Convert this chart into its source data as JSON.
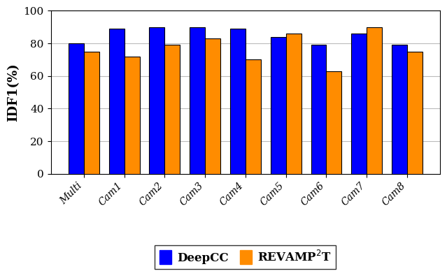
{
  "categories": [
    "Multi",
    "Cam1",
    "Cam2",
    "Cam3",
    "Cam4",
    "Cam5",
    "Cam6",
    "Cam7",
    "Cam8"
  ],
  "deepcc_values": [
    80,
    89,
    90,
    90,
    89,
    84,
    79,
    86,
    79
  ],
  "revamp_values": [
    75,
    72,
    79,
    83,
    70,
    86,
    63,
    90,
    75
  ],
  "deepcc_color": "#0000FF",
  "revamp_color": "#FF8C00",
  "ylabel": "IDF1(%)",
  "ylim": [
    0,
    100
  ],
  "yticks": [
    0,
    20,
    40,
    60,
    80,
    100
  ],
  "legend_deepcc": "DeepCC",
  "legend_revamp": "REVAMP$^2$T",
  "bar_width": 0.38,
  "background_color": "#FFFFFF",
  "grid_color": "#BBBBBB"
}
